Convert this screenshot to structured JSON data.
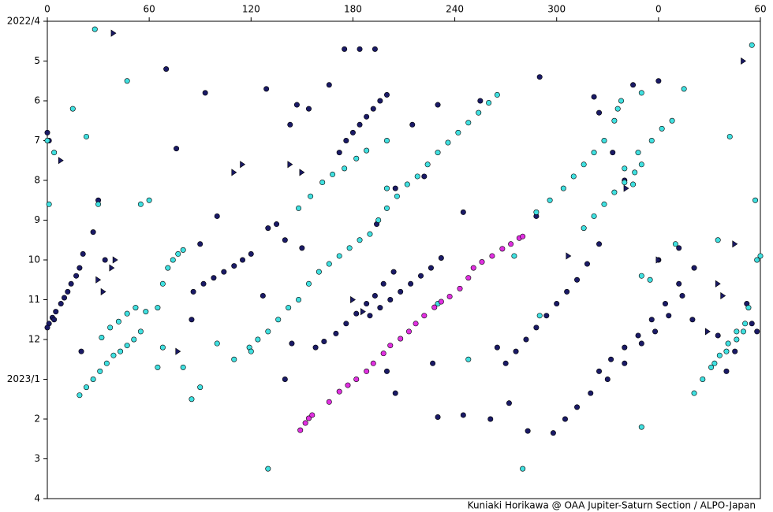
{
  "chart_data": {
    "type": "scatter",
    "credit": "Kuniaki Horikawa @ OAA Jupiter-Saturn Section / ALPO-Japan",
    "xlim": [
      0,
      420
    ],
    "xticks": [
      0,
      60,
      120,
      180,
      240,
      300,
      {
        "value": 360,
        "label": "0"
      },
      {
        "value": 420,
        "label": "60"
      }
    ],
    "ylim": [
      0,
      12
    ],
    "yinverted": true,
    "yticks": [
      {
        "value": 0,
        "label": "2022/4"
      },
      {
        "value": 1,
        "label": "5"
      },
      {
        "value": 2,
        "label": "6"
      },
      {
        "value": 3,
        "label": "7"
      },
      {
        "value": 4,
        "label": "8"
      },
      {
        "value": 5,
        "label": "9"
      },
      {
        "value": 6,
        "label": "10"
      },
      {
        "value": 7,
        "label": "11"
      },
      {
        "value": 8,
        "label": "12"
      },
      {
        "value": 9,
        "label": "2023/1"
      },
      {
        "value": 10,
        "label": "2"
      },
      {
        "value": 11,
        "label": "3"
      },
      {
        "value": 12,
        "label": "4"
      }
    ],
    "series": [
      {
        "color": "#1a1a66",
        "marker": "circle",
        "x": [
          1,
          3,
          5,
          8,
          10,
          12,
          14,
          17,
          19,
          21,
          0,
          1,
          0,
          4,
          86,
          92,
          98,
          104,
          110,
          115,
          120,
          158,
          163,
          170,
          176,
          182,
          188,
          193,
          198,
          204,
          190,
          196,
          202,
          208,
          214,
          220,
          226,
          232,
          270,
          276,
          282,
          288,
          294,
          300,
          306,
          312,
          318,
          325,
          298,
          305,
          312,
          320,
          330,
          340,
          350,
          358,
          366,
          374,
          381,
          325,
          332,
          340,
          348,
          356,
          364,
          372,
          172,
          176,
          180,
          184,
          188,
          192,
          196,
          200,
          175,
          184,
          193,
          93,
          129,
          147,
          154,
          143,
          166,
          76,
          70,
          100,
          130,
          140,
          127,
          144,
          140,
          230,
          245,
          227,
          205,
          200,
          272,
          261,
          283,
          265,
          215,
          230,
          255,
          290,
          322,
          288,
          245,
          222,
          205,
          194,
          90,
          150,
          135,
          325,
          345,
          380,
          333,
          340,
          372,
          360,
          395,
          400,
          405,
          415,
          418,
          412,
          30,
          34,
          27,
          20,
          85,
          360
        ],
        "values": [
          7.6,
          7.45,
          7.3,
          7.1,
          6.95,
          6.8,
          6.6,
          6.4,
          6.2,
          5.85,
          2.8,
          3.0,
          7.7,
          7.5,
          6.8,
          6.6,
          6.45,
          6.3,
          6.15,
          6.0,
          5.85,
          8.2,
          8.05,
          7.85,
          7.6,
          7.35,
          7.1,
          6.9,
          6.6,
          6.3,
          7.4,
          7.2,
          7.0,
          6.8,
          6.6,
          6.4,
          6.2,
          5.95,
          8.6,
          8.3,
          8.0,
          7.7,
          7.4,
          7.1,
          6.8,
          6.5,
          6.1,
          5.6,
          10.35,
          10.0,
          9.7,
          9.35,
          9.0,
          8.6,
          8.1,
          7.8,
          7.4,
          6.9,
          6.2,
          8.8,
          8.5,
          8.2,
          7.9,
          7.5,
          7.1,
          6.6,
          3.3,
          3.0,
          2.8,
          2.6,
          2.4,
          2.2,
          2.0,
          1.85,
          0.7,
          0.7,
          0.7,
          1.8,
          1.7,
          2.1,
          2.2,
          2.6,
          1.6,
          3.2,
          1.2,
          4.9,
          5.2,
          5.5,
          6.9,
          8.1,
          9.0,
          9.95,
          9.9,
          8.6,
          9.35,
          8.8,
          9.6,
          10.0,
          10.3,
          8.2,
          2.6,
          2.1,
          2.0,
          1.4,
          1.9,
          4.9,
          4.8,
          3.9,
          4.2,
          5.1,
          5.6,
          5.7,
          5.1,
          2.3,
          1.6,
          7.5,
          3.3,
          4.0,
          5.7,
          6.0,
          7.9,
          8.8,
          8.3,
          7.6,
          7.8,
          7.1,
          4.5,
          6.0,
          5.3,
          8.3,
          7.5,
          1.5
        ]
      },
      {
        "color": "#40e0e0",
        "marker": "circle",
        "x": [
          19,
          23,
          27,
          31,
          35,
          39,
          43,
          47,
          51,
          55,
          32,
          37,
          42,
          47,
          52,
          65,
          68,
          71,
          74,
          77,
          80,
          119,
          124,
          130,
          136,
          142,
          148,
          154,
          160,
          166,
          172,
          178,
          184,
          190,
          195,
          200,
          206,
          212,
          218,
          224,
          230,
          236,
          242,
          248,
          254,
          260,
          265,
          148,
          155,
          162,
          168,
          175,
          182,
          188,
          288,
          296,
          304,
          310,
          316,
          322,
          328,
          334,
          336,
          338,
          316,
          322,
          328,
          334,
          340,
          346,
          350,
          340,
          348,
          356,
          362,
          368,
          381,
          386,
          391,
          396,
          401,
          406,
          411,
          413,
          393,
          400,
          406,
          410,
          0,
          4,
          1,
          15,
          23,
          28,
          30,
          47,
          55,
          60,
          65,
          68,
          58,
          80,
          85,
          90,
          100,
          110,
          120,
          130,
          280,
          350,
          350,
          355,
          370,
          395,
          402,
          415,
          418,
          420,
          417,
          350,
          375,
          200,
          200,
          230,
          248,
          275,
          290,
          345
        ],
        "values": [
          9.4,
          9.2,
          9.0,
          8.8,
          8.6,
          8.4,
          8.3,
          8.15,
          8.0,
          7.8,
          7.95,
          7.7,
          7.55,
          7.35,
          7.2,
          7.2,
          6.6,
          6.2,
          6.0,
          5.85,
          5.75,
          8.2,
          8.0,
          7.8,
          7.5,
          7.2,
          7.0,
          6.6,
          6.3,
          6.1,
          5.9,
          5.7,
          5.5,
          5.35,
          5.0,
          4.7,
          4.4,
          4.1,
          3.9,
          3.6,
          3.3,
          3.05,
          2.8,
          2.55,
          2.3,
          2.05,
          1.85,
          4.7,
          4.4,
          4.05,
          3.85,
          3.7,
          3.45,
          3.25,
          4.8,
          4.5,
          4.2,
          3.9,
          3.6,
          3.3,
          3.0,
          2.5,
          2.2,
          2.0,
          5.2,
          4.9,
          4.6,
          4.3,
          4.05,
          3.8,
          3.6,
          3.7,
          3.3,
          3.0,
          2.7,
          2.5,
          9.35,
          9.0,
          8.7,
          8.4,
          8.1,
          7.8,
          7.6,
          7.2,
          8.6,
          8.3,
          8.0,
          7.8,
          3.0,
          3.3,
          4.6,
          2.2,
          2.9,
          0.2,
          4.6,
          1.5,
          4.6,
          4.5,
          8.7,
          8.2,
          7.3,
          8.7,
          9.5,
          9.2,
          8.1,
          8.5,
          8.3,
          11.25,
          11.25,
          10.2,
          6.4,
          6.5,
          5.6,
          5.5,
          2.9,
          0.6,
          6.0,
          5.9,
          4.5,
          1.8,
          1.7,
          4.2,
          3.0,
          7.1,
          8.5,
          5.9,
          7.4,
          4.1
        ]
      },
      {
        "color": "#e030e0",
        "marker": "circle",
        "x": [
          149,
          152,
          154,
          156,
          166,
          172,
          177,
          182,
          188,
          192,
          198,
          202,
          208,
          213,
          217,
          222,
          228,
          232,
          237,
          243,
          248,
          251,
          256,
          262,
          268,
          273,
          278,
          280
        ],
        "values": [
          10.28,
          10.1,
          9.98,
          9.9,
          9.57,
          9.31,
          9.15,
          9.0,
          8.8,
          8.6,
          8.35,
          8.15,
          7.98,
          7.8,
          7.6,
          7.4,
          7.19,
          7.05,
          6.92,
          6.72,
          6.45,
          6.2,
          6.05,
          5.9,
          5.72,
          5.6,
          5.45,
          5.41
        ]
      },
      {
        "color": "#1a1a66",
        "marker": "triangle",
        "x": [
          39,
          8,
          30,
          33,
          38,
          40,
          77,
          110,
          115,
          143,
          150,
          180,
          186,
          360,
          395,
          398,
          405,
          410,
          389,
          341,
          307
        ],
        "values": [
          0.3,
          3.5,
          6.5,
          6.8,
          6.2,
          6.0,
          8.3,
          3.8,
          3.6,
          3.6,
          3.8,
          7.0,
          7.3,
          6.0,
          6.6,
          6.9,
          5.6,
          1.0,
          7.8,
          4.2,
          5.9
        ]
      }
    ]
  }
}
